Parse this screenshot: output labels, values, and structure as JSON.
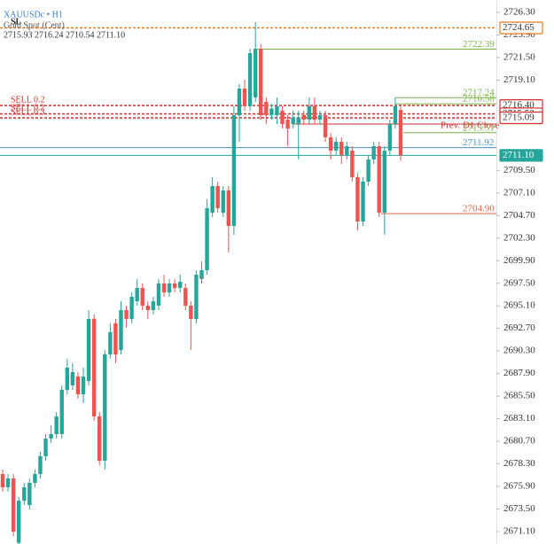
{
  "chart_data": {
    "type": "candlestick",
    "symbol": "XAUUSDc • H1",
    "subtitle": "Gold Spot (Cent)",
    "ohlc_text": "2715.93 2716.24 2710.54 2711.10",
    "sl_text": "SL",
    "up_color": "#26a69a",
    "down_color": "#ef5350",
    "open": [
      2677.22,
      2675.81,
      2676.75,
      2669.9,
      2674.39,
      2673.92,
      2676.28,
      2677.22,
      2679.11,
      2680.99,
      2681.46,
      2681.46,
      2686.17,
      2686.64,
      2687.59,
      2685.7,
      2687.12,
      2693.71,
      2683.35,
      2678.64,
      2689.94,
      2693.24,
      2690.41,
      2694.65,
      2693.71,
      2695.59,
      2697.0,
      2695.12,
      2694.65,
      2695.12,
      2697.48,
      2696.53,
      2697.48,
      2697.0,
      2697.0,
      2695.12,
      2693.71,
      2697.95,
      2698.89,
      2705.01,
      2707.84,
      2705.01,
      2707.37,
      2703.6,
      2715.37,
      2718.2,
      2716.32,
      2717.26,
      2722.44,
      2716.79,
      2715.37,
      2715.37,
      2715.85,
      2714.9,
      2714.43,
      2714.43,
      2715.37,
      2714.9,
      2716.32,
      2714.9,
      2715.37,
      2713.02,
      2711.6,
      2712.54,
      2711.13,
      2711.6,
      2708.78,
      2704.07,
      2708.31,
      2710.66,
      2712.07,
      2705.01,
      2711.6,
      2714.43,
      2715.93
    ],
    "high": [
      2677.69,
      2677.22,
      2677.22,
      2674.8,
      2676.28,
      2676.75,
      2677.69,
      2679.58,
      2681.46,
      2682.4,
      2683.82,
      2686.64,
      2689.47,
      2689.0,
      2688.06,
      2688.53,
      2694.65,
      2694.18,
      2683.82,
      2690.41,
      2693.24,
      2693.71,
      2695.59,
      2695.12,
      2696.53,
      2697.95,
      2697.48,
      2695.59,
      2696.06,
      2697.95,
      2698.42,
      2697.95,
      2697.95,
      2698.42,
      2697.48,
      2695.59,
      2698.89,
      2699.83,
      2706.42,
      2708.78,
      2708.31,
      2707.84,
      2707.84,
      2716.32,
      2718.67,
      2719.14,
      2722.44,
      2725.27,
      2722.91,
      2717.26,
      2716.55,
      2717.26,
      2716.32,
      2715.37,
      2715.85,
      2715.85,
      2715.85,
      2717.26,
      2717.26,
      2715.85,
      2715.85,
      2713.49,
      2713.02,
      2713.02,
      2712.54,
      2712.07,
      2709.25,
      2708.78,
      2711.13,
      2712.54,
      2712.54,
      2712.07,
      2714.9,
      2717.26,
      2716.24
    ],
    "low": [
      2675.34,
      2675.34,
      2670.6,
      2669.78,
      2673.92,
      2673.45,
      2675.81,
      2676.75,
      2678.64,
      2680.52,
      2680.99,
      2680.99,
      2685.7,
      2686.17,
      2685.23,
      2684.76,
      2686.64,
      2682.88,
      2678.17,
      2677.69,
      2689.47,
      2689.0,
      2689.94,
      2692.77,
      2693.24,
      2695.12,
      2694.65,
      2693.71,
      2694.18,
      2694.65,
      2696.06,
      2696.06,
      2696.53,
      2696.53,
      2694.65,
      2690.41,
      2693.24,
      2697.48,
      2698.42,
      2704.54,
      2705.01,
      2704.54,
      2700.77,
      2702.66,
      2712.54,
      2715.85,
      2715.85,
      2716.79,
      2714.9,
      2714.43,
      2714.9,
      2714.43,
      2713.96,
      2712.07,
      2713.96,
      2710.66,
      2714.43,
      2714.43,
      2714.43,
      2714.43,
      2712.54,
      2710.66,
      2711.13,
      2710.19,
      2710.66,
      2708.31,
      2703.13,
      2703.6,
      2707.84,
      2710.19,
      2704.54,
      2702.66,
      2711.13,
      2713.96,
      2710.54
    ],
    "close": [
      2675.81,
      2676.75,
      2671.1,
      2674.39,
      2675.81,
      2676.28,
      2677.22,
      2679.11,
      2680.99,
      2681.46,
      2683.35,
      2686.17,
      2688.53,
      2688.06,
      2685.7,
      2687.59,
      2693.71,
      2683.35,
      2678.64,
      2689.94,
      2692.3,
      2689.94,
      2694.65,
      2693.71,
      2696.06,
      2697.0,
      2695.12,
      2694.65,
      2695.59,
      2697.48,
      2696.53,
      2697.48,
      2697.0,
      2697.66,
      2695.12,
      2693.71,
      2698.42,
      2698.89,
      2705.48,
      2707.84,
      2705.48,
      2707.37,
      2703.6,
      2715.37,
      2718.2,
      2716.32,
      2721.97,
      2722.44,
      2715.37,
      2715.37,
      2716.08,
      2716.32,
      2714.43,
      2713.96,
      2715.14,
      2715.14,
      2714.9,
      2716.32,
      2714.9,
      2715.37,
      2713.02,
      2711.6,
      2712.54,
      2711.13,
      2712.07,
      2708.78,
      2704.07,
      2708.31,
      2710.66,
      2712.07,
      2705.01,
      2711.6,
      2714.43,
      2716.32,
      2711.1
    ],
    "ylim": [
      2669.78,
      2727.62
    ],
    "yticks": [
      {
        "value": 2726.3,
        "label": "2726.30"
      },
      {
        "value": 2723.9,
        "label": "2723.90"
      },
      {
        "value": 2721.5,
        "label": "2721.50"
      },
      {
        "value": 2719.1,
        "label": "2719.10"
      },
      {
        "value": 2709.5,
        "label": "2709.50"
      },
      {
        "value": 2707.1,
        "label": "2707.10"
      },
      {
        "value": 2704.7,
        "label": "2704.70"
      },
      {
        "value": 2702.3,
        "label": "2702.30"
      },
      {
        "value": 2699.9,
        "label": "2699.90"
      },
      {
        "value": 2697.5,
        "label": "2697.50"
      },
      {
        "value": 2695.1,
        "label": "2695.10"
      },
      {
        "value": 2692.7,
        "label": "2692.70"
      },
      {
        "value": 2690.3,
        "label": "2690.30"
      },
      {
        "value": 2687.9,
        "label": "2687.90"
      },
      {
        "value": 2685.5,
        "label": "2685.50"
      },
      {
        "value": 2683.1,
        "label": "2683.10"
      },
      {
        "value": 2680.7,
        "label": "2680.70"
      },
      {
        "value": 2678.3,
        "label": "2678.30"
      },
      {
        "value": 2675.9,
        "label": "2675.90"
      },
      {
        "value": 2673.5,
        "label": "2673.50"
      },
      {
        "value": 2671.1,
        "label": "2671.10"
      }
    ],
    "levels": [
      {
        "price": 2724.65,
        "color": "#e67e22",
        "style": "dashed",
        "tag": "box"
      },
      {
        "price": 2722.39,
        "color": "#7cb342",
        "style": "solid",
        "tag": "text"
      },
      {
        "price": 2717.24,
        "color": "#7cb342",
        "style": "solid",
        "tag": "text"
      },
      {
        "price": 2716.58,
        "color": "#7cb342",
        "style": "solid",
        "tag": "text"
      },
      {
        "price": {
          "value": 2716.4,
          "label": "2716.40"
        },
        "color": "#d32f2f",
        "style": "dashed",
        "tag": "box",
        "text": "SELL 0.2"
      },
      {
        "price": 2715.52,
        "color": "#d32f2f",
        "style": "dashed",
        "tag": "box",
        "text": "SELL 0.2"
      },
      {
        "price": 2715.09,
        "color": "#d32f2f",
        "style": "dashed",
        "tag": "box",
        "text": "SELL 0.3"
      },
      {
        "price": 2714.43,
        "color": "#d32f2f",
        "style": "solid",
        "text": "Prev. D1 Close"
      },
      {
        "price": 2713.51,
        "color": "#7cb342",
        "style": "solid",
        "tag": "text"
      },
      {
        "price": 2711.92,
        "color": "#4a8fc2",
        "style": "solid",
        "tag": "text"
      },
      {
        "price": {
          "value": 2711.1,
          "label": "2711.10"
        },
        "color": "#26a69a",
        "style": "solid",
        "tag": "fill"
      },
      {
        "price": {
          "value": 2704.9,
          "label": "2704.90"
        },
        "color": "#e0673f",
        "style": "solid",
        "tag": "text"
      }
    ]
  }
}
